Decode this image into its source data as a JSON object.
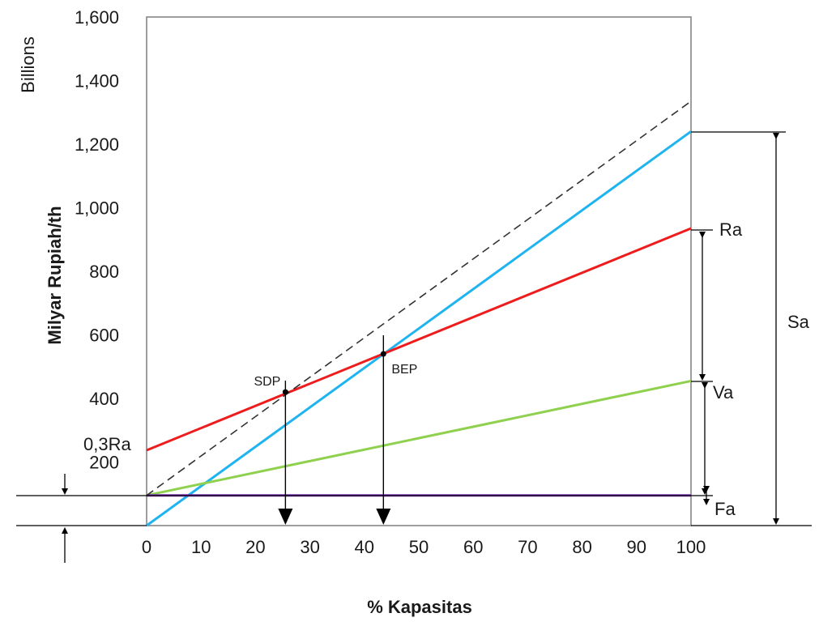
{
  "chart_data": {
    "type": "line",
    "unit_label": "Billions",
    "ylabel": "Milyar Rupiah/th",
    "xlabel": "% Kapasitas",
    "xlim": [
      0,
      100
    ],
    "ylim": [
      0,
      1600
    ],
    "xticks": [
      0,
      10,
      20,
      30,
      40,
      50,
      60,
      70,
      80,
      90,
      100
    ],
    "yticks": [
      200,
      400,
      600,
      800,
      1000,
      1200,
      1400,
      1600
    ],
    "ytick_labels": [
      "200",
      "400",
      "600",
      "800",
      "1,000",
      "1,200",
      "1,400",
      "1,600"
    ],
    "series": [
      {
        "id": "sales",
        "color": "#1fb4ef",
        "dash": false,
        "x": [
          0,
          100
        ],
        "y": [
          0,
          1240
        ]
      },
      {
        "id": "ra",
        "color": "#ee1c1c",
        "dash": false,
        "x": [
          0,
          100
        ],
        "y": [
          237,
          935
        ]
      },
      {
        "id": "va",
        "color": "#8fd14f",
        "dash": false,
        "x": [
          0,
          100
        ],
        "y": [
          95,
          455
        ]
      },
      {
        "id": "fa",
        "color": "#7a32b5",
        "dash": false,
        "x": [
          0,
          100
        ],
        "y": [
          95,
          95
        ]
      },
      {
        "id": "dashed",
        "color": "#333333",
        "dash": true,
        "x": [
          0,
          100
        ],
        "y": [
          95,
          1335
        ]
      }
    ],
    "points": [
      {
        "label": "SDP",
        "x": 25.5,
        "y": 420
      },
      {
        "label": "BEP",
        "x": 43.5,
        "y": 540
      }
    ],
    "annotations": {
      "ra": "Ra",
      "va": "Va",
      "fa": "Fa",
      "sa": "Sa",
      "ra03": "0,3Ra"
    }
  }
}
